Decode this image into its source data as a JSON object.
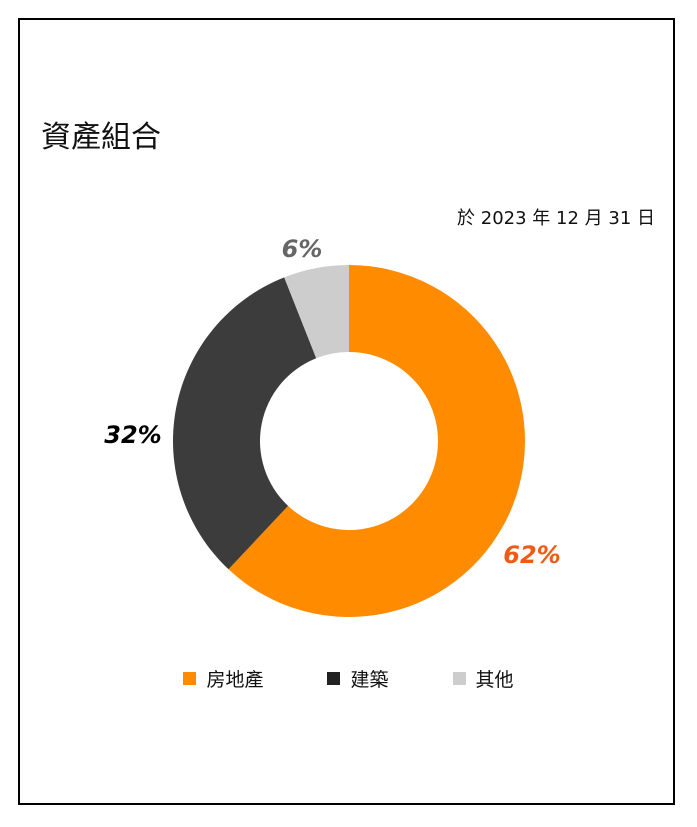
{
  "header": {
    "title": "資產組合",
    "date": "於 2023 年 12 月 31 日"
  },
  "chart_data": {
    "type": "pie",
    "categories": [
      "房地產",
      "建築",
      "其他"
    ],
    "values": [
      62,
      32,
      6
    ],
    "labels": [
      "62%",
      "32%",
      "6%"
    ],
    "colors": [
      "#FF8C00",
      "#3C3C3C",
      "#CDCDCD"
    ],
    "label_colors": [
      "#F05A14",
      "#000000",
      "#666666"
    ],
    "donut": true,
    "legend_position": "bottom",
    "title": "資產組合"
  }
}
